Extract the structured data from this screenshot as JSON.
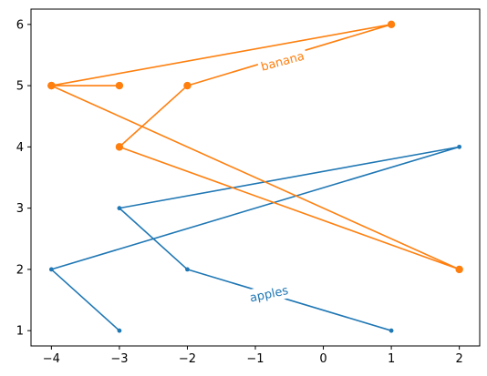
{
  "chart_data": {
    "type": "line",
    "title": "",
    "xlabel": "",
    "ylabel": "",
    "xlim": [
      -4.3,
      2.3
    ],
    "ylim": [
      0.75,
      6.25
    ],
    "xticks": [
      -4,
      -3,
      -2,
      -1,
      0,
      1,
      2
    ],
    "yticks": [
      1,
      2,
      3,
      4,
      5,
      6
    ],
    "xtick_labels": [
      "−4",
      "−3",
      "−2",
      "−1",
      "0",
      "1",
      "2"
    ],
    "ytick_labels": [
      "1",
      "2",
      "3",
      "4",
      "5",
      "6"
    ],
    "grid": false,
    "series": [
      {
        "name": "apples",
        "color": "#1f77b4",
        "marker": "small-dot",
        "x": [
          -3,
          -4,
          2,
          -3,
          -2,
          1
        ],
        "y": [
          1,
          2,
          4,
          3,
          2,
          1
        ],
        "label_at": {
          "x": -0.8,
          "y": 1.6,
          "rotation_deg": -12
        }
      },
      {
        "name": "banana",
        "color": "#ff7f0e",
        "marker": "large-dot",
        "x": [
          -3,
          -4,
          2,
          -3,
          -2,
          1,
          -4
        ],
        "y": [
          5,
          5,
          2,
          4,
          5,
          6,
          5
        ],
        "label_at": {
          "x": -0.6,
          "y": 5.4,
          "rotation_deg": -15
        }
      }
    ]
  }
}
